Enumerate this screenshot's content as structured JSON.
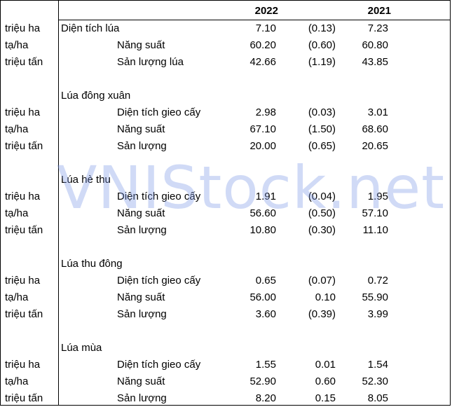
{
  "header": {
    "year1": "2022",
    "year2": "2021"
  },
  "rows": [
    {
      "unit": "triệu ha",
      "label": "Diện tích lúa",
      "indent": false,
      "v1": "7.10",
      "chg": "(0.13)",
      "v2": "7.23"
    },
    {
      "unit": "tạ/ha",
      "label": "Năng suất",
      "indent": true,
      "v1": "60.20",
      "chg": "(0.60)",
      "v2": "60.80"
    },
    {
      "unit": "triệu tấn",
      "label": "Sản lượng lúa",
      "indent": true,
      "v1": "42.66",
      "chg": "(1.19)",
      "v2": "43.85"
    },
    {
      "unit": "",
      "label": "",
      "indent": false,
      "v1": "",
      "chg": "",
      "v2": ""
    },
    {
      "unit": "",
      "label": "Lúa đông xuân",
      "indent": false,
      "v1": "",
      "chg": "",
      "v2": ""
    },
    {
      "unit": "triệu ha",
      "label": "Diện tích gieo cấy",
      "indent": true,
      "v1": "2.98",
      "chg": "(0.03)",
      "v2": "3.01"
    },
    {
      "unit": "tạ/ha",
      "label": "Năng suất",
      "indent": true,
      "v1": "67.10",
      "chg": "(1.50)",
      "v2": "68.60"
    },
    {
      "unit": "triệu tấn",
      "label": "Sản lượng",
      "indent": true,
      "v1": "20.00",
      "chg": "(0.65)",
      "v2": "20.65"
    },
    {
      "unit": "",
      "label": "",
      "indent": false,
      "v1": "",
      "chg": "",
      "v2": ""
    },
    {
      "unit": "",
      "label": "Lúa hè thu",
      "indent": false,
      "v1": "",
      "chg": "",
      "v2": ""
    },
    {
      "unit": "triệu ha",
      "label": "Diện tích gieo cấy",
      "indent": true,
      "v1": "1.91",
      "chg": "(0.04)",
      "v2": "1.95"
    },
    {
      "unit": "tạ/ha",
      "label": "Năng suất",
      "indent": true,
      "v1": "56.60",
      "chg": "(0.50)",
      "v2": "57.10"
    },
    {
      "unit": "triệu tấn",
      "label": "Sản lượng",
      "indent": true,
      "v1": "10.80",
      "chg": "(0.30)",
      "v2": "11.10"
    },
    {
      "unit": "",
      "label": "",
      "indent": false,
      "v1": "",
      "chg": "",
      "v2": ""
    },
    {
      "unit": "",
      "label": "Lúa thu đông",
      "indent": false,
      "v1": "",
      "chg": "",
      "v2": ""
    },
    {
      "unit": "triệu ha",
      "label": "Diện tích gieo cấy",
      "indent": true,
      "v1": "0.65",
      "chg": "(0.07)",
      "v2": "0.72"
    },
    {
      "unit": "tạ/ha",
      "label": "Năng suất",
      "indent": true,
      "v1": "56.00",
      "chg": "0.10",
      "v2": "55.90"
    },
    {
      "unit": "triệu tấn",
      "label": "Sản lượng",
      "indent": true,
      "v1": "3.60",
      "chg": "(0.39)",
      "v2": "3.99"
    },
    {
      "unit": "",
      "label": "",
      "indent": false,
      "v1": "",
      "chg": "",
      "v2": ""
    },
    {
      "unit": "",
      "label": "Lúa mùa",
      "indent": false,
      "v1": "",
      "chg": "",
      "v2": ""
    },
    {
      "unit": "triệu ha",
      "label": "Diện tích gieo cấy",
      "indent": true,
      "v1": "1.55",
      "chg": "0.01",
      "v2": "1.54"
    },
    {
      "unit": "tạ/ha",
      "label": "Năng suất",
      "indent": true,
      "v1": "52.90",
      "chg": "0.60",
      "v2": "52.30"
    },
    {
      "unit": "triệu tấn",
      "label": "Sản lượng",
      "indent": true,
      "v1": "8.20",
      "chg": "0.15",
      "v2": "8.05"
    }
  ],
  "watermark": "VNIStock.net"
}
